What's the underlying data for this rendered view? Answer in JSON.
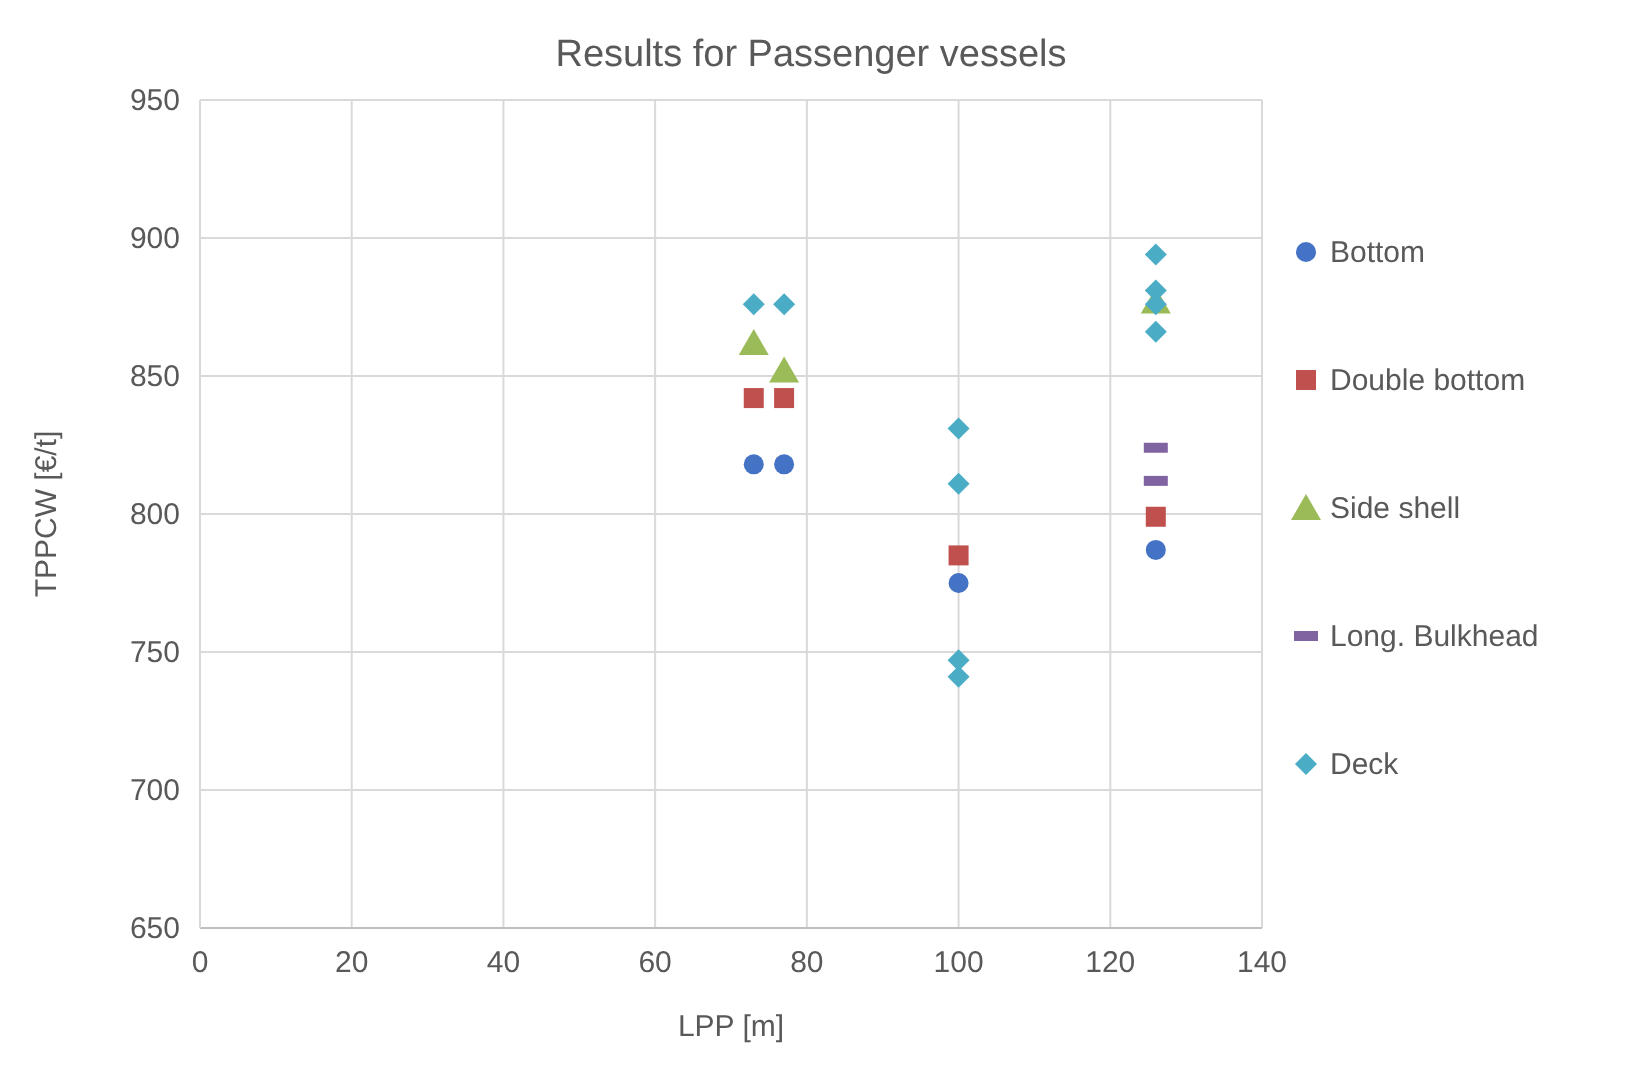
{
  "chart_data": {
    "type": "scatter",
    "title": "Results for Passenger vessels",
    "xlabel": "LPP [m]",
    "ylabel": "TPPCW [€/t]",
    "xlim": [
      0,
      140
    ],
    "xticks": [
      0,
      20,
      40,
      60,
      80,
      100,
      120,
      140
    ],
    "ylim": [
      650,
      950
    ],
    "yticks": [
      650,
      700,
      750,
      800,
      850,
      900,
      950
    ],
    "grid": true,
    "legend": "right",
    "series": [
      {
        "name": "Bottom",
        "color": "#4472c4",
        "marker": "circle",
        "x": [
          73,
          77,
          100,
          126
        ],
        "values": [
          818,
          818,
          775,
          787
        ]
      },
      {
        "name": "Double bottom",
        "color": "#c0504d",
        "marker": "square",
        "x": [
          73,
          77,
          100,
          126
        ],
        "values": [
          842,
          842,
          785,
          799
        ]
      },
      {
        "name": "Side shell",
        "color": "#9bbb59",
        "marker": "triangle",
        "x": [
          73,
          77,
          126
        ],
        "values": [
          862,
          852,
          877
        ]
      },
      {
        "name": "Long. Bulkhead",
        "color": "#8064a2",
        "x": [
          126,
          126
        ],
        "values": [
          824,
          812
        ]
      },
      {
        "name": "Deck",
        "color": "#4bacc6",
        "marker": "diamond",
        "x": [
          73,
          77,
          100,
          100,
          100,
          100,
          126,
          126,
          126,
          126
        ],
        "values": [
          876,
          876,
          831,
          811,
          747,
          741,
          894,
          881,
          876,
          866
        ]
      }
    ]
  }
}
